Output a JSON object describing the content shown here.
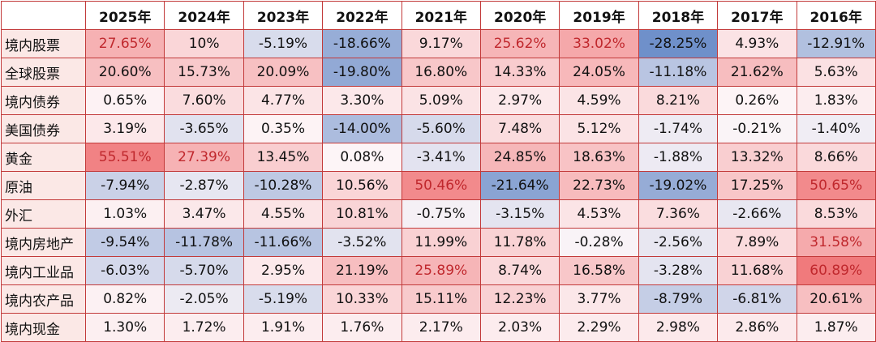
{
  "chart_data": {
    "type": "heatmap",
    "columns": [
      "2025年",
      "2024年",
      "2023年",
      "2022年",
      "2021年",
      "2020年",
      "2019年",
      "2018年",
      "2017年",
      "2016年"
    ],
    "rows": [
      {
        "name": "境内股票",
        "values": [
          "27.65%",
          "10%",
          "-5.19%",
          "-18.66%",
          "9.17%",
          "25.62%",
          "33.02%",
          "-28.25%",
          "4.93%",
          "-12.91%"
        ]
      },
      {
        "name": "全球股票",
        "values": [
          "20.60%",
          "15.73%",
          "20.09%",
          "-19.80%",
          "16.80%",
          "14.33%",
          "24.05%",
          "-11.18%",
          "21.62%",
          "5.63%"
        ]
      },
      {
        "name": "境内债券",
        "values": [
          "0.65%",
          "7.60%",
          "4.77%",
          "3.30%",
          "5.09%",
          "2.97%",
          "4.59%",
          "8.21%",
          "0.26%",
          "1.83%"
        ]
      },
      {
        "name": "美国债券",
        "values": [
          "3.19%",
          "-3.65%",
          "0.35%",
          "-14.00%",
          "-5.60%",
          "7.48%",
          "5.12%",
          "-1.74%",
          "-0.21%",
          "-1.40%"
        ]
      },
      {
        "name": "黄金",
        "values": [
          "55.51%",
          "27.39%",
          "13.45%",
          "0.08%",
          "-3.41%",
          "24.85%",
          "18.63%",
          "-1.88%",
          "13.32%",
          "8.66%"
        ]
      },
      {
        "name": "原油",
        "values": [
          "-7.94%",
          "-2.87%",
          "-10.28%",
          "10.56%",
          "50.46%",
          "-21.64%",
          "22.73%",
          "-19.02%",
          "17.25%",
          "50.65%"
        ]
      },
      {
        "name": "外汇",
        "values": [
          "1.03%",
          "3.47%",
          "4.55%",
          "10.81%",
          "-0.75%",
          "-3.15%",
          "4.53%",
          "7.36%",
          "-2.66%",
          "8.53%"
        ]
      },
      {
        "name": "境内房地产",
        "values": [
          "-9.54%",
          "-11.78%",
          "-11.66%",
          "-3.52%",
          "11.99%",
          "11.78%",
          "-0.28%",
          "-2.56%",
          "7.89%",
          "31.58%"
        ]
      },
      {
        "name": "境内工业品",
        "values": [
          "-6.03%",
          "-5.70%",
          "2.95%",
          "21.19%",
          "25.89%",
          "8.74%",
          "16.58%",
          "-3.28%",
          "11.68%",
          "60.89%"
        ]
      },
      {
        "name": "境内农产品",
        "values": [
          "0.82%",
          "-2.05%",
          "-5.19%",
          "10.33%",
          "15.11%",
          "12.23%",
          "3.77%",
          "-8.79%",
          "-6.81%",
          "20.61%"
        ]
      },
      {
        "name": "境内现金",
        "values": [
          "1.30%",
          "1.72%",
          "1.91%",
          "1.76%",
          "2.17%",
          "2.03%",
          "2.29%",
          "2.98%",
          "2.86%",
          "1.87%"
        ]
      }
    ],
    "color_scale": {
      "positive_max_color": "#f07a7c",
      "negative_max_color": "#6c8ec9",
      "neutral_color": "#fdf6f8",
      "positive_emphasis_text_color": "#c0282d"
    }
  }
}
